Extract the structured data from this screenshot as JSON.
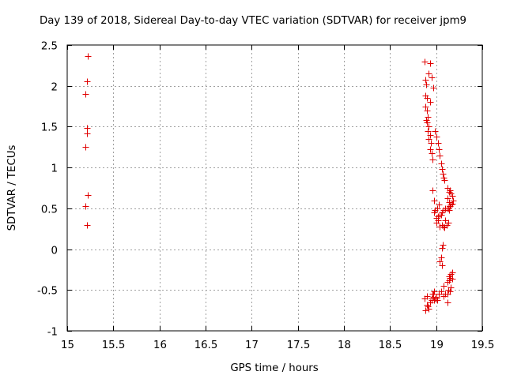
{
  "chart_data": {
    "type": "scatter",
    "title": "Day 139 of 2018, Sidereal Day-to-day VTEC variation (SDTVAR) for receiver jpm9",
    "xlabel": "GPS time / hours",
    "ylabel": "SDTVAR / TECUs",
    "xlim": [
      15,
      19.5
    ],
    "ylim": [
      -1,
      2.5
    ],
    "grid": true,
    "marker": "+",
    "color": "#e00000",
    "xticks": [
      "15",
      "15.5",
      "16",
      "16.5",
      "17",
      "17.5",
      "18",
      "18.5",
      "19",
      "19.5"
    ],
    "yticks": [
      "-1",
      "-0.5",
      "0",
      "0.5",
      "1",
      "1.5",
      "2",
      "2.5"
    ],
    "x": [
      15.22,
      15.21,
      15.2,
      15.21,
      15.21,
      15.2,
      15.22,
      15.2,
      15.21,
      18.87,
      18.93,
      18.88,
      18.92,
      18.95,
      18.89,
      18.97,
      18.88,
      18.9,
      18.93,
      18.88,
      18.9,
      18.91,
      18.89,
      18.9,
      18.92,
      18.91,
      18.93,
      18.92,
      18.94,
      18.93,
      18.95,
      18.96,
      18.99,
      19.0,
      19.02,
      19.03,
      19.04,
      19.05,
      19.06,
      19.07,
      19.08,
      19.09,
      19.12,
      19.14,
      19.15,
      19.16,
      19.17,
      19.18,
      19.16,
      19.14,
      19.12,
      19.13,
      19.15,
      19.17,
      19.14,
      19.11,
      19.1,
      19.08,
      19.06,
      19.04,
      19.02,
      19.0,
      18.98,
      19.01,
      19.03,
      19.05,
      19.02,
      19.0,
      18.99,
      19.04,
      18.98,
      18.96,
      19.06,
      19.08,
      19.09,
      19.11,
      19.13,
      19.1,
      19.07,
      19.06,
      19.05,
      19.04,
      19.06,
      19.08,
      19.12,
      19.15,
      19.16,
      19.14,
      19.17,
      19.13,
      19.12,
      19.15,
      19.16,
      19.14,
      19.17,
      19.12,
      19.1,
      19.08,
      19.05,
      19.03,
      19.0,
      18.98,
      18.97,
      18.96,
      18.95,
      18.93,
      18.91,
      18.9,
      18.88,
      18.87,
      18.9,
      18.92,
      18.93,
      18.95,
      18.97,
      18.99,
      19.01,
      19.0,
      18.98
    ],
    "y": [
      2.36,
      2.06,
      1.9,
      1.48,
      1.42,
      1.25,
      0.66,
      0.53,
      0.3,
      2.3,
      2.28,
      2.07,
      2.15,
      2.1,
      2.02,
      1.98,
      1.88,
      1.85,
      1.8,
      1.75,
      1.7,
      1.62,
      1.58,
      1.55,
      1.5,
      1.45,
      1.4,
      1.35,
      1.3,
      1.22,
      1.18,
      1.1,
      1.45,
      1.38,
      1.3,
      1.22,
      1.15,
      1.05,
      0.98,
      0.92,
      0.88,
      0.85,
      0.75,
      0.7,
      0.72,
      0.68,
      0.65,
      0.6,
      0.55,
      0.58,
      0.62,
      0.5,
      0.53,
      0.56,
      0.48,
      0.5,
      0.5,
      0.48,
      0.45,
      0.42,
      0.4,
      0.38,
      0.45,
      0.5,
      0.55,
      0.42,
      0.35,
      0.32,
      0.48,
      0.28,
      0.6,
      0.72,
      0.3,
      0.28,
      0.27,
      0.3,
      0.32,
      0.35,
      0.05,
      0.02,
      -0.1,
      -0.15,
      -0.2,
      -0.45,
      -0.4,
      -0.35,
      -0.3,
      -0.38,
      -0.28,
      -0.5,
      -0.55,
      -0.52,
      -0.47,
      -0.33,
      -0.36,
      -0.65,
      -0.55,
      -0.57,
      -0.52,
      -0.55,
      -0.6,
      -0.62,
      -0.58,
      -0.55,
      -0.62,
      -0.65,
      -0.7,
      -0.68,
      -0.75,
      -0.6,
      -0.57,
      -0.73,
      -0.65,
      -0.6,
      -0.55,
      -0.6,
      -0.62,
      -0.58,
      -0.52
    ]
  }
}
